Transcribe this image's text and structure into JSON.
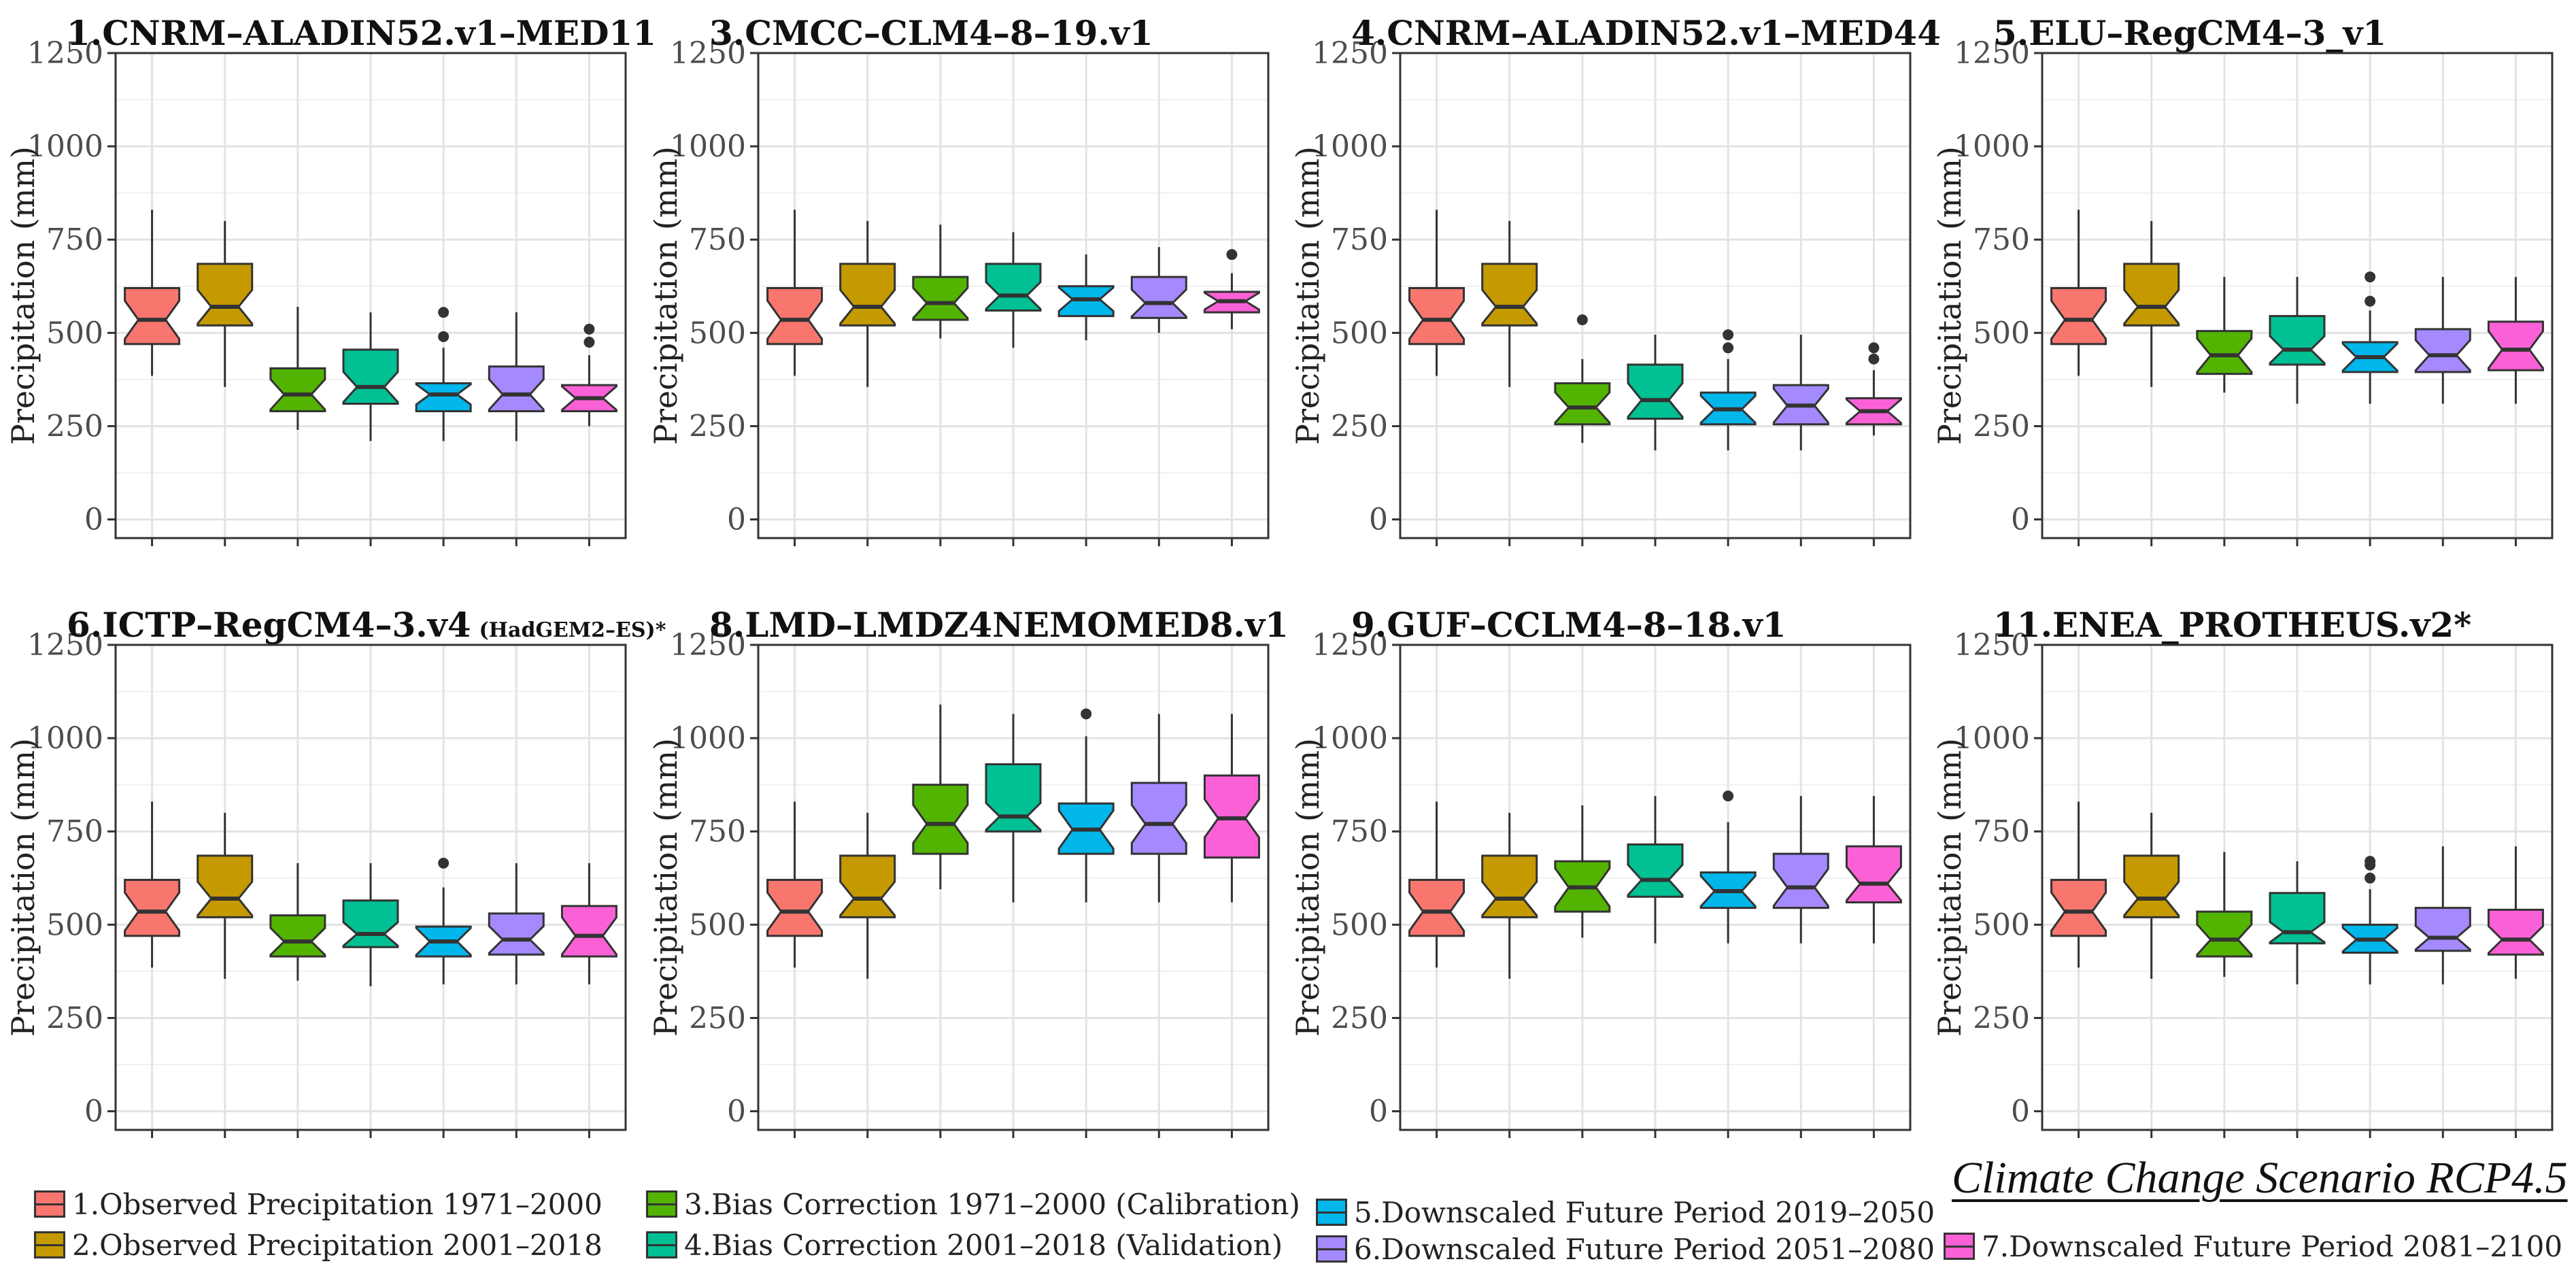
{
  "figure": {
    "y_axis_label": "Precipitation (mm)",
    "scenario_label": "Climate Change Scenario RCP4.5"
  },
  "legend": {
    "items": [
      {
        "label": "1.Observed Precipitation 1971–2000",
        "color": "#F8766D"
      },
      {
        "label": "2.Observed Precipitation 2001–2018",
        "color": "#C49A00"
      },
      {
        "label": "3.Bias Correction 1971–2000 (Calibration)",
        "color": "#53B400"
      },
      {
        "label": "4.Bias Correction 2001–2018 (Validation)",
        "color": "#00C094"
      },
      {
        "label": "5.Downscaled Future Period 2019–2050",
        "color": "#00B6EB"
      },
      {
        "label": "6.Downscaled Future Period 2051–2080",
        "color": "#A58AFF"
      },
      {
        "label": "7.Downscaled Future Period 2081–2100",
        "color": "#FB61D7"
      }
    ]
  },
  "chart_data": [
    {
      "type": "boxplot",
      "title": "1.CNRM–ALADIN52.v1–MED11",
      "subtitle": "",
      "xlabel": "",
      "ylabel": "Precipitation (mm)",
      "ylim": [
        -50,
        1250
      ],
      "yticks": [
        0,
        250,
        500,
        750,
        1000,
        1250
      ],
      "grid": true,
      "notched": true,
      "boxes": [
        {
          "series": 1,
          "whisker_low": 385,
          "q1": 470,
          "median": 535,
          "q3": 620,
          "whisker_high": 830,
          "outliers": []
        },
        {
          "series": 2,
          "whisker_low": 355,
          "q1": 520,
          "median": 570,
          "q3": 685,
          "whisker_high": 800,
          "outliers": []
        },
        {
          "series": 3,
          "whisker_low": 240,
          "q1": 290,
          "median": 335,
          "q3": 405,
          "whisker_high": 570,
          "outliers": []
        },
        {
          "series": 4,
          "whisker_low": 210,
          "q1": 310,
          "median": 355,
          "q3": 455,
          "whisker_high": 555,
          "outliers": []
        },
        {
          "series": 5,
          "whisker_low": 210,
          "q1": 290,
          "median": 335,
          "q3": 365,
          "whisker_high": 460,
          "outliers": [
            490,
            555
          ]
        },
        {
          "series": 6,
          "whisker_low": 210,
          "q1": 290,
          "median": 335,
          "q3": 410,
          "whisker_high": 555,
          "outliers": []
        },
        {
          "series": 7,
          "whisker_low": 250,
          "q1": 290,
          "median": 325,
          "q3": 360,
          "whisker_high": 440,
          "outliers": [
            475,
            510
          ]
        }
      ]
    },
    {
      "type": "boxplot",
      "title": "3.CMCC–CLM4–8–19.v1",
      "subtitle": "",
      "xlabel": "",
      "ylabel": "Precipitation (mm)",
      "ylim": [
        -50,
        1250
      ],
      "yticks": [
        0,
        250,
        500,
        750,
        1000,
        1250
      ],
      "grid": true,
      "notched": true,
      "boxes": [
        {
          "series": 1,
          "whisker_low": 385,
          "q1": 470,
          "median": 535,
          "q3": 620,
          "whisker_high": 830,
          "outliers": []
        },
        {
          "series": 2,
          "whisker_low": 355,
          "q1": 520,
          "median": 570,
          "q3": 685,
          "whisker_high": 800,
          "outliers": []
        },
        {
          "series": 3,
          "whisker_low": 485,
          "q1": 535,
          "median": 580,
          "q3": 650,
          "whisker_high": 790,
          "outliers": []
        },
        {
          "series": 4,
          "whisker_low": 460,
          "q1": 560,
          "median": 600,
          "q3": 685,
          "whisker_high": 770,
          "outliers": []
        },
        {
          "series": 5,
          "whisker_low": 480,
          "q1": 545,
          "median": 590,
          "q3": 625,
          "whisker_high": 710,
          "outliers": []
        },
        {
          "series": 6,
          "whisker_low": 500,
          "q1": 540,
          "median": 580,
          "q3": 650,
          "whisker_high": 730,
          "outliers": []
        },
        {
          "series": 7,
          "whisker_low": 510,
          "q1": 555,
          "median": 585,
          "q3": 610,
          "whisker_high": 660,
          "outliers": [
            710
          ]
        }
      ]
    },
    {
      "type": "boxplot",
      "title": "4.CNRM–ALADIN52.v1–MED44",
      "subtitle": "",
      "xlabel": "",
      "ylabel": "Precipitation (mm)",
      "ylim": [
        -50,
        1250
      ],
      "yticks": [
        0,
        250,
        500,
        750,
        1000,
        1250
      ],
      "grid": true,
      "notched": true,
      "boxes": [
        {
          "series": 1,
          "whisker_low": 385,
          "q1": 470,
          "median": 535,
          "q3": 620,
          "whisker_high": 830,
          "outliers": []
        },
        {
          "series": 2,
          "whisker_low": 355,
          "q1": 520,
          "median": 570,
          "q3": 685,
          "whisker_high": 800,
          "outliers": []
        },
        {
          "series": 3,
          "whisker_low": 205,
          "q1": 255,
          "median": 300,
          "q3": 365,
          "whisker_high": 430,
          "outliers": [
            535
          ]
        },
        {
          "series": 4,
          "whisker_low": 185,
          "q1": 270,
          "median": 320,
          "q3": 415,
          "whisker_high": 495,
          "outliers": []
        },
        {
          "series": 5,
          "whisker_low": 185,
          "q1": 255,
          "median": 295,
          "q3": 340,
          "whisker_high": 430,
          "outliers": [
            460,
            495
          ]
        },
        {
          "series": 6,
          "whisker_low": 185,
          "q1": 255,
          "median": 305,
          "q3": 360,
          "whisker_high": 495,
          "outliers": []
        },
        {
          "series": 7,
          "whisker_low": 225,
          "q1": 255,
          "median": 290,
          "q3": 325,
          "whisker_high": 400,
          "outliers": [
            430,
            460
          ]
        }
      ]
    },
    {
      "type": "boxplot",
      "title": "5.ELU–RegCM4–3_v1",
      "subtitle": "",
      "xlabel": "",
      "ylabel": "Precipitation (mm)",
      "ylim": [
        -50,
        1250
      ],
      "yticks": [
        0,
        250,
        500,
        750,
        1000,
        1250
      ],
      "grid": true,
      "notched": true,
      "boxes": [
        {
          "series": 1,
          "whisker_low": 385,
          "q1": 470,
          "median": 535,
          "q3": 620,
          "whisker_high": 830,
          "outliers": []
        },
        {
          "series": 2,
          "whisker_low": 355,
          "q1": 520,
          "median": 570,
          "q3": 685,
          "whisker_high": 800,
          "outliers": []
        },
        {
          "series": 3,
          "whisker_low": 340,
          "q1": 390,
          "median": 440,
          "q3": 505,
          "whisker_high": 650,
          "outliers": []
        },
        {
          "series": 4,
          "whisker_low": 310,
          "q1": 415,
          "median": 455,
          "q3": 545,
          "whisker_high": 650,
          "outliers": []
        },
        {
          "series": 5,
          "whisker_low": 310,
          "q1": 395,
          "median": 435,
          "q3": 475,
          "whisker_high": 560,
          "outliers": [
            585,
            650
          ]
        },
        {
          "series": 6,
          "whisker_low": 310,
          "q1": 395,
          "median": 440,
          "q3": 510,
          "whisker_high": 650,
          "outliers": []
        },
        {
          "series": 7,
          "whisker_low": 310,
          "q1": 400,
          "median": 455,
          "q3": 530,
          "whisker_high": 650,
          "outliers": []
        }
      ]
    },
    {
      "type": "boxplot",
      "title": "6.ICTP–RegCM4–3.v4",
      "subtitle": "(HadGEM2–ES)*",
      "xlabel": "",
      "ylabel": "Precipitation (mm)",
      "ylim": [
        -50,
        1250
      ],
      "yticks": [
        0,
        250,
        500,
        750,
        1000,
        1250
      ],
      "grid": true,
      "notched": true,
      "boxes": [
        {
          "series": 1,
          "whisker_low": 385,
          "q1": 470,
          "median": 535,
          "q3": 620,
          "whisker_high": 830,
          "outliers": []
        },
        {
          "series": 2,
          "whisker_low": 355,
          "q1": 520,
          "median": 570,
          "q3": 685,
          "whisker_high": 800,
          "outliers": []
        },
        {
          "series": 3,
          "whisker_low": 350,
          "q1": 415,
          "median": 455,
          "q3": 525,
          "whisker_high": 665,
          "outliers": []
        },
        {
          "series": 4,
          "whisker_low": 335,
          "q1": 440,
          "median": 475,
          "q3": 565,
          "whisker_high": 665,
          "outliers": []
        },
        {
          "series": 5,
          "whisker_low": 340,
          "q1": 415,
          "median": 455,
          "q3": 495,
          "whisker_high": 600,
          "outliers": [
            665
          ]
        },
        {
          "series": 6,
          "whisker_low": 340,
          "q1": 420,
          "median": 460,
          "q3": 530,
          "whisker_high": 665,
          "outliers": []
        },
        {
          "series": 7,
          "whisker_low": 340,
          "q1": 415,
          "median": 470,
          "q3": 550,
          "whisker_high": 665,
          "outliers": []
        }
      ]
    },
    {
      "type": "boxplot",
      "title": "8.LMD–LMDZ4NEMOMED8.v1",
      "subtitle": "",
      "xlabel": "",
      "ylabel": "Precipitation (mm)",
      "ylim": [
        -50,
        1250
      ],
      "yticks": [
        0,
        250,
        500,
        750,
        1000,
        1250
      ],
      "grid": true,
      "notched": true,
      "boxes": [
        {
          "series": 1,
          "whisker_low": 385,
          "q1": 470,
          "median": 535,
          "q3": 620,
          "whisker_high": 830,
          "outliers": []
        },
        {
          "series": 2,
          "whisker_low": 355,
          "q1": 520,
          "median": 570,
          "q3": 685,
          "whisker_high": 800,
          "outliers": []
        },
        {
          "series": 3,
          "whisker_low": 595,
          "q1": 690,
          "median": 770,
          "q3": 875,
          "whisker_high": 1090,
          "outliers": []
        },
        {
          "series": 4,
          "whisker_low": 560,
          "q1": 750,
          "median": 790,
          "q3": 930,
          "whisker_high": 1065,
          "outliers": []
        },
        {
          "series": 5,
          "whisker_low": 560,
          "q1": 690,
          "median": 755,
          "q3": 825,
          "whisker_high": 1005,
          "outliers": [
            1065
          ]
        },
        {
          "series": 6,
          "whisker_low": 560,
          "q1": 690,
          "median": 770,
          "q3": 880,
          "whisker_high": 1065,
          "outliers": []
        },
        {
          "series": 7,
          "whisker_low": 560,
          "q1": 680,
          "median": 785,
          "q3": 900,
          "whisker_high": 1065,
          "outliers": []
        }
      ]
    },
    {
      "type": "boxplot",
      "title": "9.GUF–CCLM4–8–18.v1",
      "subtitle": "",
      "xlabel": "",
      "ylabel": "Precipitation (mm)",
      "ylim": [
        -50,
        1250
      ],
      "yticks": [
        0,
        250,
        500,
        750,
        1000,
        1250
      ],
      "grid": true,
      "notched": true,
      "boxes": [
        {
          "series": 1,
          "whisker_low": 385,
          "q1": 470,
          "median": 535,
          "q3": 620,
          "whisker_high": 830,
          "outliers": []
        },
        {
          "series": 2,
          "whisker_low": 355,
          "q1": 520,
          "median": 570,
          "q3": 685,
          "whisker_high": 800,
          "outliers": []
        },
        {
          "series": 3,
          "whisker_low": 465,
          "q1": 535,
          "median": 600,
          "q3": 670,
          "whisker_high": 820,
          "outliers": []
        },
        {
          "series": 4,
          "whisker_low": 450,
          "q1": 575,
          "median": 620,
          "q3": 715,
          "whisker_high": 845,
          "outliers": []
        },
        {
          "series": 5,
          "whisker_low": 450,
          "q1": 545,
          "median": 590,
          "q3": 640,
          "whisker_high": 775,
          "outliers": [
            845
          ]
        },
        {
          "series": 6,
          "whisker_low": 450,
          "q1": 545,
          "median": 600,
          "q3": 690,
          "whisker_high": 845,
          "outliers": []
        },
        {
          "series": 7,
          "whisker_low": 450,
          "q1": 560,
          "median": 610,
          "q3": 710,
          "whisker_high": 845,
          "outliers": []
        }
      ]
    },
    {
      "type": "boxplot",
      "title": "11.ENEA_PROTHEUS.v2*",
      "subtitle": "",
      "xlabel": "",
      "ylabel": "Precipitation (mm)",
      "ylim": [
        -50,
        1250
      ],
      "yticks": [
        0,
        250,
        500,
        750,
        1000,
        1250
      ],
      "grid": true,
      "notched": true,
      "boxes": [
        {
          "series": 1,
          "whisker_low": 385,
          "q1": 470,
          "median": 535,
          "q3": 620,
          "whisker_high": 830,
          "outliers": []
        },
        {
          "series": 2,
          "whisker_low": 355,
          "q1": 520,
          "median": 570,
          "q3": 685,
          "whisker_high": 800,
          "outliers": []
        },
        {
          "series": 3,
          "whisker_low": 360,
          "q1": 415,
          "median": 460,
          "q3": 535,
          "whisker_high": 695,
          "outliers": []
        },
        {
          "series": 4,
          "whisker_low": 340,
          "q1": 450,
          "median": 480,
          "q3": 585,
          "whisker_high": 670,
          "outliers": []
        },
        {
          "series": 5,
          "whisker_low": 340,
          "q1": 425,
          "median": 460,
          "q3": 500,
          "whisker_high": 595,
          "outliers": [
            625,
            660,
            670
          ]
        },
        {
          "series": 6,
          "whisker_low": 340,
          "q1": 430,
          "median": 465,
          "q3": 545,
          "whisker_high": 710,
          "outliers": []
        },
        {
          "series": 7,
          "whisker_low": 355,
          "q1": 420,
          "median": 460,
          "q3": 540,
          "whisker_high": 710,
          "outliers": []
        }
      ]
    }
  ]
}
